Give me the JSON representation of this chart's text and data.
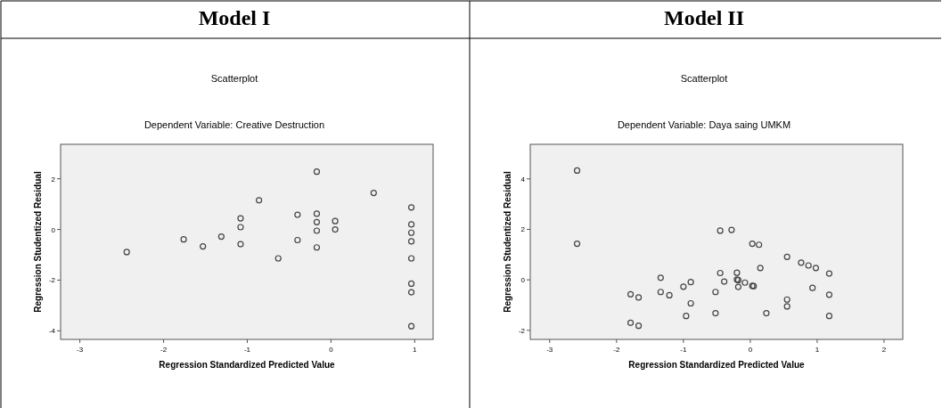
{
  "chart_data": [
    {
      "type": "scatter",
      "title": "Model I",
      "subtitle": "Scatterplot",
      "annotations": [
        "Dependent Variable: Creative Destruction"
      ],
      "xlabel": "Regression Standardized Predicted Value",
      "ylabel": "Regression Studentized Residual",
      "xlim": [
        -3.23,
        1.22
      ],
      "ylim": [
        -4.34,
        3.36
      ],
      "xticks": [
        -3,
        -2,
        -1,
        0,
        1
      ],
      "yticks": [
        -4,
        -2,
        0,
        2
      ],
      "marker": "circle",
      "grid": false,
      "series": [
        {
          "color": "#444444",
          "x": [
            -2.44,
            -1.76,
            -1.53,
            -1.31,
            -1.08,
            -1.08,
            -1.08,
            -0.86,
            -0.63,
            -0.4,
            -0.4,
            -0.17,
            -0.17,
            -0.17,
            -0.17,
            -0.17,
            0.05,
            0.05,
            0.51,
            0.96,
            0.96,
            0.96,
            0.96,
            0.96,
            0.96,
            0.96,
            0.96
          ],
          "values": [
            -0.89,
            -0.39,
            -0.67,
            -0.28,
            0.44,
            0.09,
            -0.58,
            1.15,
            -1.14,
            0.58,
            -0.42,
            2.28,
            0.62,
            0.29,
            -0.05,
            -0.71,
            0.33,
            0,
            1.44,
            0.87,
            0.2,
            -0.13,
            -0.47,
            -1.14,
            -2.14,
            -2.48,
            -3.82
          ]
        }
      ]
    },
    {
      "type": "scatter",
      "title": "Model II",
      "subtitle": "Scatterplot",
      "annotations": [
        "Dependent Variable: Daya saing UMKM"
      ],
      "xlabel": "Regression Standardized Predicted Value",
      "ylabel": "Regression Studentized Residual",
      "xlim": [
        -3.29,
        2.28
      ],
      "ylim": [
        -2.36,
        5.37
      ],
      "xticks": [
        -3,
        -2,
        -1,
        0,
        1,
        2
      ],
      "yticks": [
        -2,
        0,
        2,
        4
      ],
      "marker": "circle",
      "grid": false,
      "series": [
        {
          "color": "#444444",
          "x": [
            -2.59,
            -2.59,
            -1.79,
            -1.79,
            -1.67,
            -1.67,
            -1.34,
            -1.34,
            -1.21,
            -1,
            -0.96,
            -0.89,
            -0.89,
            -0.52,
            -0.52,
            -0.45,
            -0.45,
            -0.39,
            -0.28,
            -0.2,
            -0.2,
            -0.18,
            -0.18,
            -0.08,
            0.03,
            0.03,
            0.05,
            0.13,
            0.15,
            0.24,
            0.55,
            0.55,
            0.55,
            0.76,
            0.87,
            0.93,
            0.98,
            1.18,
            1.18,
            1.18
          ],
          "values": [
            4.33,
            1.43,
            -0.57,
            -1.7,
            -0.7,
            -1.82,
            0.08,
            -0.48,
            -0.61,
            -0.27,
            -1.43,
            -0.09,
            -0.93,
            -0.48,
            -1.32,
            1.95,
            0.27,
            -0.07,
            1.98,
            0.28,
            0.01,
            -0.01,
            -0.28,
            -0.11,
            1.43,
            -0.24,
            -0.25,
            1.39,
            0.47,
            -1.32,
            0.91,
            -0.78,
            -1.05,
            0.68,
            0.57,
            -0.32,
            0.47,
            0.25,
            -0.59,
            -1.43
          ]
        }
      ]
    }
  ]
}
